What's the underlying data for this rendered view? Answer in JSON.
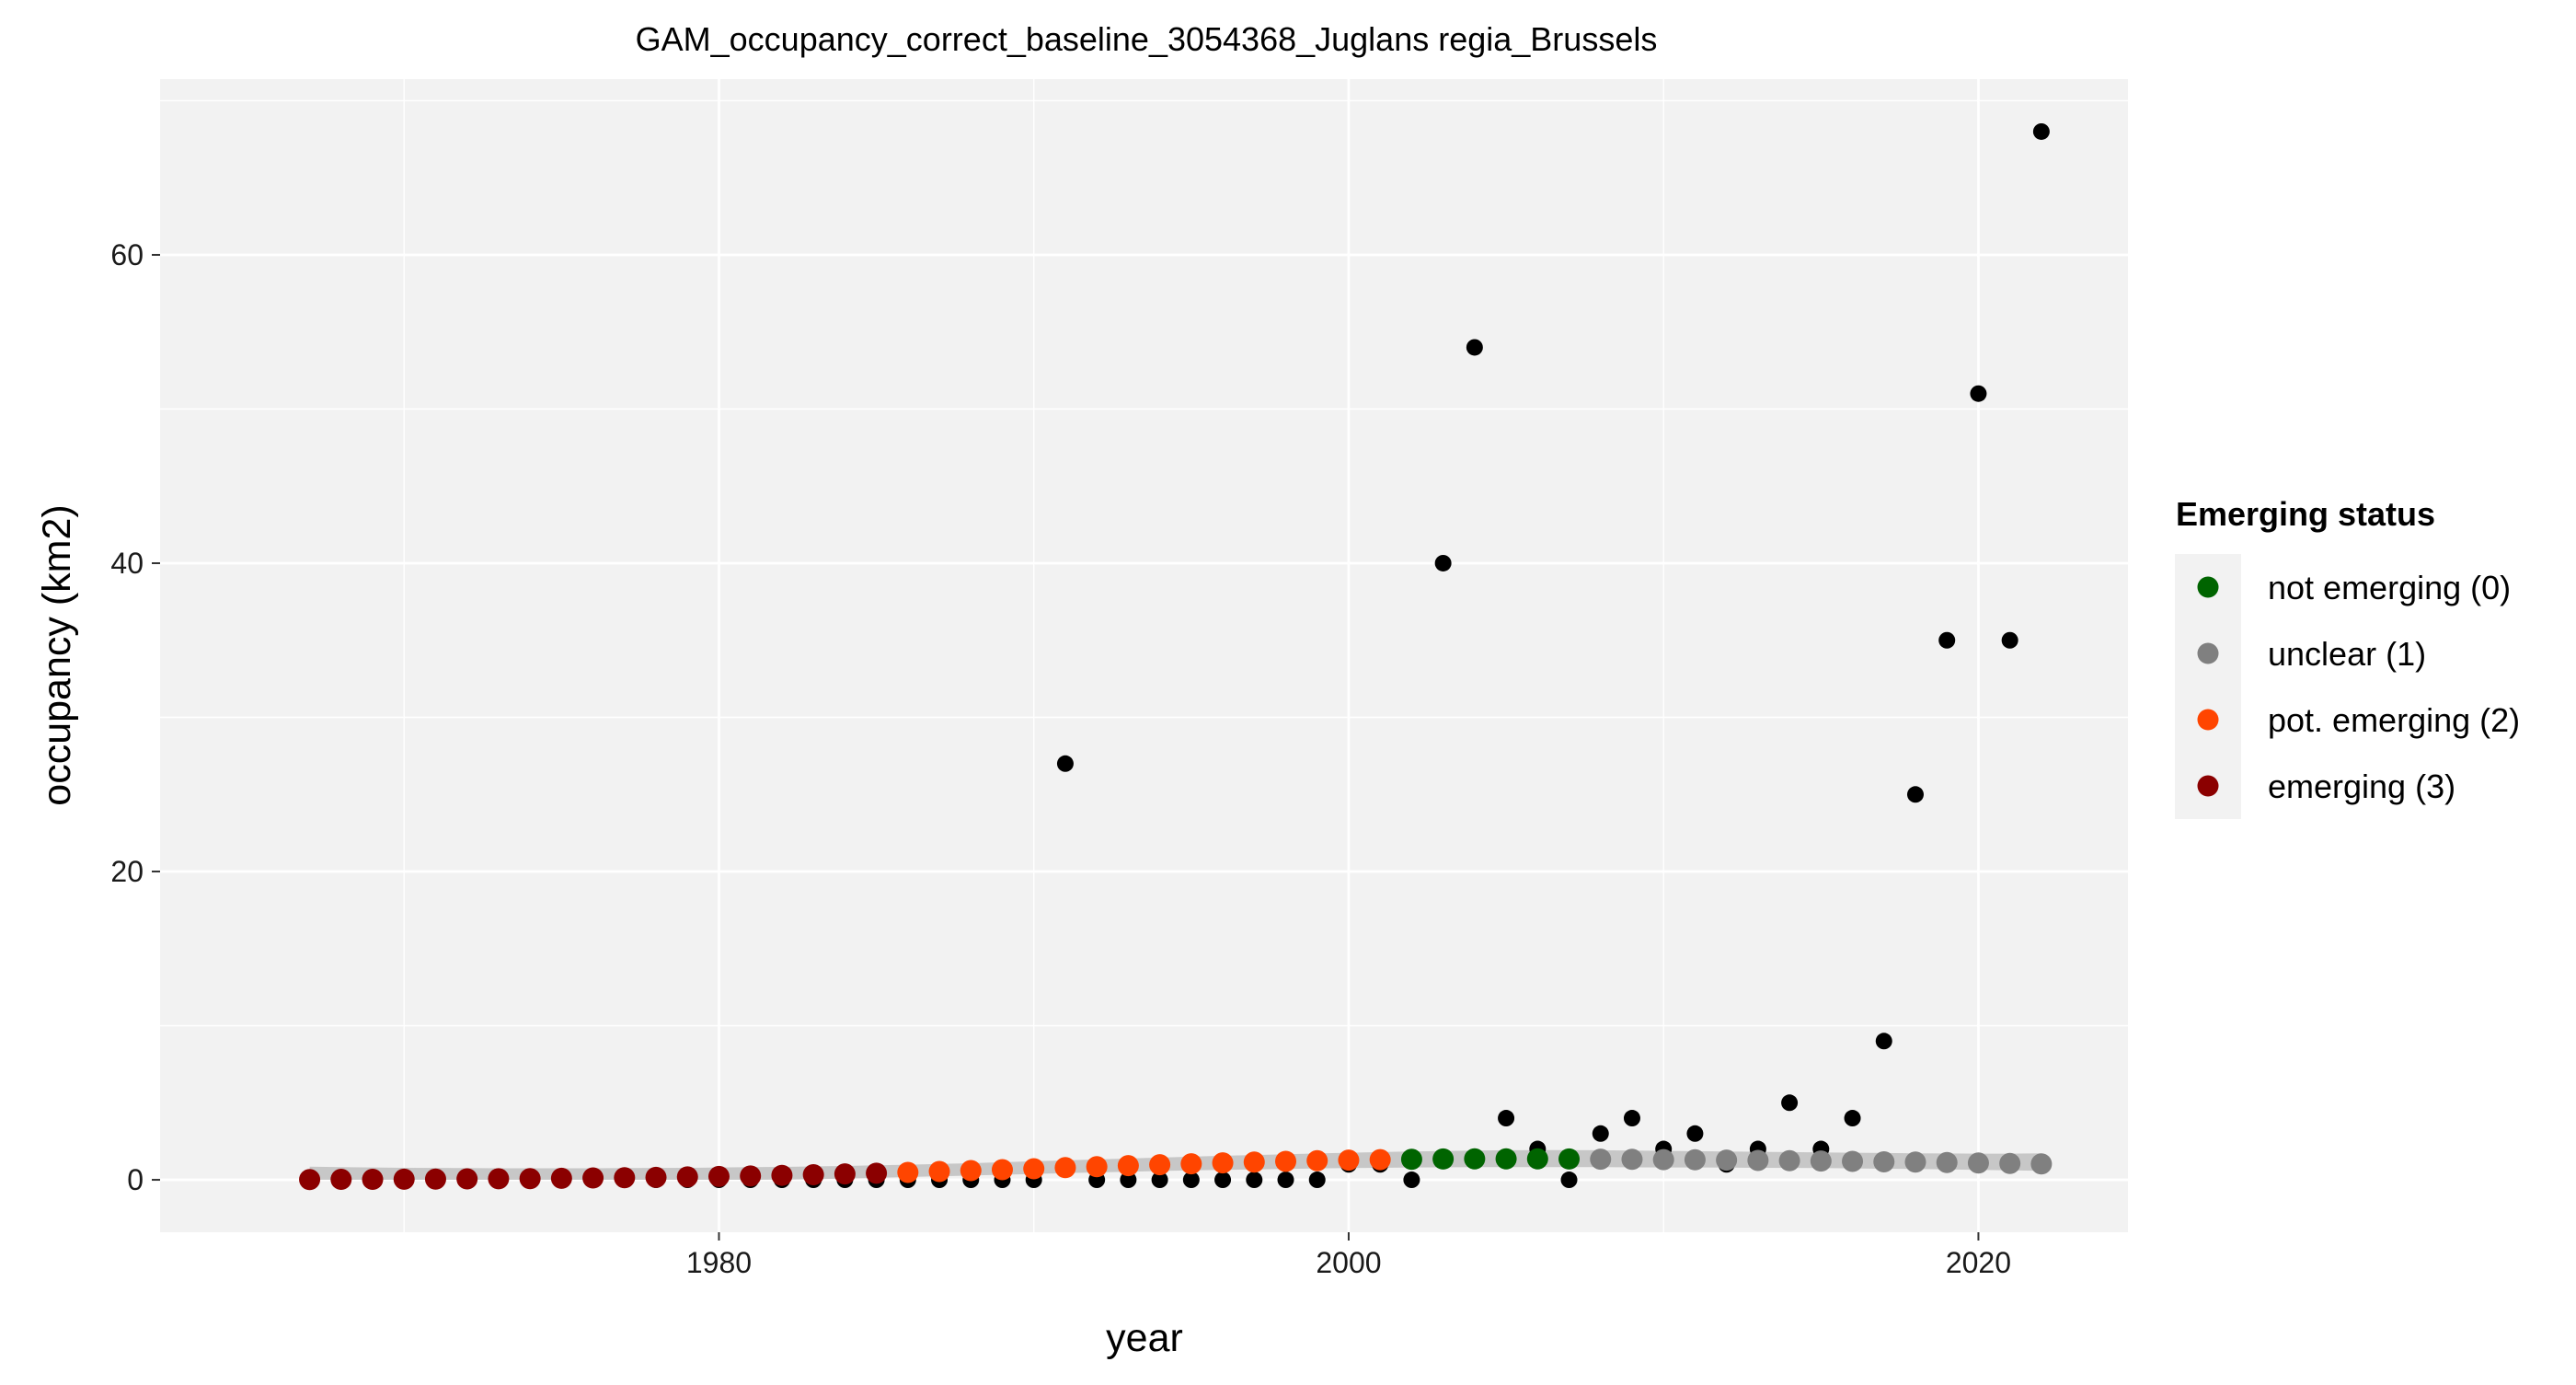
{
  "chart_data": {
    "type": "scatter",
    "title": "GAM_occupancy_correct_baseline_3054368_Juglans regia_Brussels",
    "xlabel": "year",
    "ylabel": "occupancy (km2)",
    "xlim": [
      1962.25,
      2024.75
    ],
    "ylim": [
      -3.4,
      71.4
    ],
    "x_ticks": [
      1980,
      2000,
      2020
    ],
    "y_ticks": [
      0,
      20,
      40,
      60
    ],
    "grid": true,
    "legend": {
      "title": "Emerging status",
      "position": "right",
      "items": [
        {
          "label": "not emerging (0)",
          "color": "#006400"
        },
        {
          "label": "unclear (1)",
          "color": "#808080"
        },
        {
          "label": "pot. emerging (2)",
          "color": "#FF4500"
        },
        {
          "label": "emerging (3)",
          "color": "#8B0000"
        }
      ]
    },
    "colors": {
      "panel": "#F2F2F2",
      "grid": "#FFFFFF",
      "observed": "#000000",
      "ribbon": "#BFBFBF"
    },
    "observed": {
      "x": [
        1967,
        1968,
        1969,
        1970,
        1971,
        1972,
        1973,
        1974,
        1975,
        1976,
        1977,
        1978,
        1979,
        1980,
        1981,
        1982,
        1983,
        1984,
        1985,
        1986,
        1987,
        1988,
        1989,
        1990,
        1991,
        1992,
        1993,
        1994,
        1995,
        1996,
        1997,
        1998,
        1999,
        2000,
        2001,
        2002,
        2003,
        2004,
        2005,
        2006,
        2007,
        2008,
        2009,
        2010,
        2011,
        2012,
        2013,
        2014,
        2015,
        2016,
        2017,
        2018,
        2019,
        2020,
        2021,
        2022
      ],
      "y": [
        0,
        0,
        0,
        0,
        0,
        0,
        0,
        0,
        0,
        0,
        0,
        0,
        0,
        0,
        0,
        0,
        0,
        0,
        0,
        0,
        0,
        0,
        0,
        0,
        27,
        0,
        0,
        0,
        0,
        0,
        0,
        0,
        0,
        1,
        1,
        0,
        40,
        54,
        4,
        2,
        0,
        3,
        4,
        2,
        3,
        1,
        2,
        5,
        2,
        4,
        9,
        25,
        35,
        51,
        35,
        68
      ]
    },
    "fit": {
      "x": [
        1967,
        1968,
        1969,
        1970,
        1971,
        1972,
        1973,
        1974,
        1975,
        1976,
        1977,
        1978,
        1979,
        1980,
        1981,
        1982,
        1983,
        1984,
        1985,
        1986,
        1987,
        1988,
        1989,
        1990,
        1991,
        1992,
        1993,
        1994,
        1995,
        1996,
        1997,
        1998,
        1999,
        2000,
        2001,
        2002,
        2003,
        2004,
        2005,
        2006,
        2007,
        2008,
        2009,
        2010,
        2011,
        2012,
        2013,
        2014,
        2015,
        2016,
        2017,
        2018,
        2019,
        2020,
        2021,
        2022
      ],
      "y": [
        0.02,
        0.03,
        0.03,
        0.04,
        0.05,
        0.06,
        0.07,
        0.08,
        0.1,
        0.12,
        0.14,
        0.16,
        0.19,
        0.22,
        0.25,
        0.29,
        0.33,
        0.38,
        0.43,
        0.48,
        0.54,
        0.6,
        0.66,
        0.72,
        0.79,
        0.85,
        0.92,
        0.98,
        1.04,
        1.1,
        1.15,
        1.2,
        1.24,
        1.28,
        1.31,
        1.33,
        1.35,
        1.36,
        1.36,
        1.36,
        1.35,
        1.34,
        1.33,
        1.31,
        1.3,
        1.28,
        1.26,
        1.24,
        1.22,
        1.2,
        1.17,
        1.15,
        1.12,
        1.09,
        1.06,
        1.03
      ],
      "lower": [
        0.0,
        0.0,
        0.0,
        0.0,
        0.0,
        0.0,
        0.0,
        0.0,
        0.0,
        0.0,
        0.0,
        0.0,
        0.0,
        0.0,
        0.0,
        0.01,
        0.04,
        0.08,
        0.13,
        0.18,
        0.23,
        0.28,
        0.33,
        0.38,
        0.43,
        0.48,
        0.53,
        0.57,
        0.61,
        0.65,
        0.68,
        0.71,
        0.74,
        0.76,
        0.78,
        0.8,
        0.81,
        0.82,
        0.82,
        0.82,
        0.82,
        0.82,
        0.81,
        0.8,
        0.8,
        0.79,
        0.78,
        0.77,
        0.76,
        0.74,
        0.72,
        0.7,
        0.68,
        0.65,
        0.62,
        0.58
      ],
      "upper": [
        0.85,
        0.82,
        0.8,
        0.78,
        0.77,
        0.76,
        0.75,
        0.75,
        0.75,
        0.75,
        0.76,
        0.77,
        0.78,
        0.8,
        0.82,
        0.84,
        0.87,
        0.9,
        0.94,
        0.98,
        1.03,
        1.08,
        1.14,
        1.2,
        1.26,
        1.32,
        1.38,
        1.44,
        1.5,
        1.56,
        1.61,
        1.66,
        1.71,
        1.76,
        1.8,
        1.84,
        1.87,
        1.9,
        1.92,
        1.93,
        1.93,
        1.92,
        1.9,
        1.88,
        1.86,
        1.84,
        1.82,
        1.8,
        1.78,
        1.76,
        1.74,
        1.72,
        1.71,
        1.7,
        1.7,
        1.72
      ],
      "status": [
        3,
        3,
        3,
        3,
        3,
        3,
        3,
        3,
        3,
        3,
        3,
        3,
        3,
        3,
        3,
        3,
        3,
        3,
        3,
        2,
        2,
        2,
        2,
        2,
        2,
        2,
        2,
        2,
        2,
        2,
        2,
        2,
        2,
        2,
        2,
        0,
        0,
        0,
        0,
        0,
        0,
        1,
        1,
        1,
        1,
        1,
        1,
        1,
        1,
        1,
        1,
        1,
        1,
        1,
        1,
        1
      ]
    }
  }
}
